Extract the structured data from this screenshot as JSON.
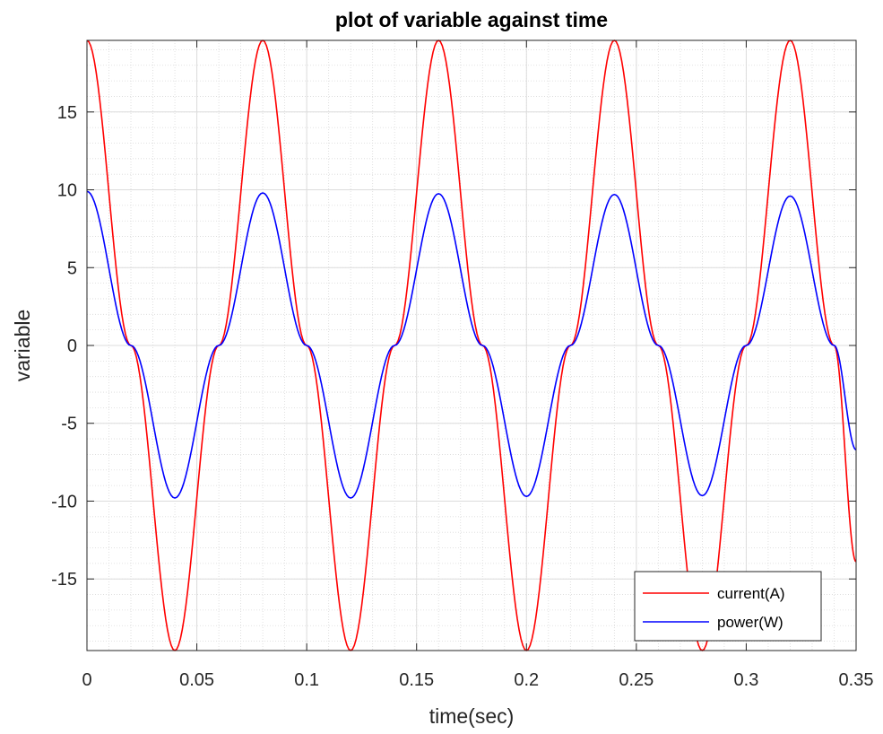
{
  "chart_data": {
    "type": "line",
    "title": "plot of variable against time",
    "xlabel": "time(sec)",
    "ylabel": "variable",
    "xlim": [
      0,
      0.35
    ],
    "ylim": [
      -19.6,
      19.6
    ],
    "xticks": [
      0,
      0.05,
      0.1,
      0.15,
      0.2,
      0.25,
      0.3,
      0.35
    ],
    "xtick_labels": [
      "0",
      "0.05",
      "0.1",
      "0.15",
      "0.2",
      "0.25",
      "0.3",
      "0.35"
    ],
    "yticks": [
      -15,
      -10,
      -5,
      0,
      5,
      10,
      15
    ],
    "ytick_labels": [
      "-15",
      "-10",
      "-5",
      "0",
      "5",
      "10",
      "15"
    ],
    "grid": true,
    "minor_grid": true,
    "legend_position": "bottom-right",
    "series": [
      {
        "name": "current(A)",
        "color": "#ff0000",
        "x": [
          0,
          0.02,
          0.04,
          0.06,
          0.08,
          0.1,
          0.12,
          0.14,
          0.16,
          0.18,
          0.2,
          0.22,
          0.24,
          0.26,
          0.28,
          0.3,
          0.32,
          0.34,
          0.35
        ],
        "y": [
          19.6,
          0,
          -19.6,
          0,
          19.6,
          0,
          -19.6,
          0,
          19.6,
          0,
          -19.6,
          0,
          19.6,
          0,
          -19.6,
          0,
          19.6,
          0,
          -13.9
        ]
      },
      {
        "name": "power(W)",
        "color": "#0000ff",
        "x": [
          0,
          0.02,
          0.04,
          0.06,
          0.08,
          0.1,
          0.12,
          0.14,
          0.16,
          0.18,
          0.2,
          0.22,
          0.24,
          0.26,
          0.28,
          0.3,
          0.32,
          0.34,
          0.35
        ],
        "y": [
          9.9,
          0,
          -9.8,
          0,
          9.8,
          0,
          -9.8,
          0,
          9.75,
          0,
          -9.7,
          0,
          9.7,
          0,
          -9.65,
          0,
          9.6,
          0,
          -6.7
        ]
      }
    ]
  }
}
